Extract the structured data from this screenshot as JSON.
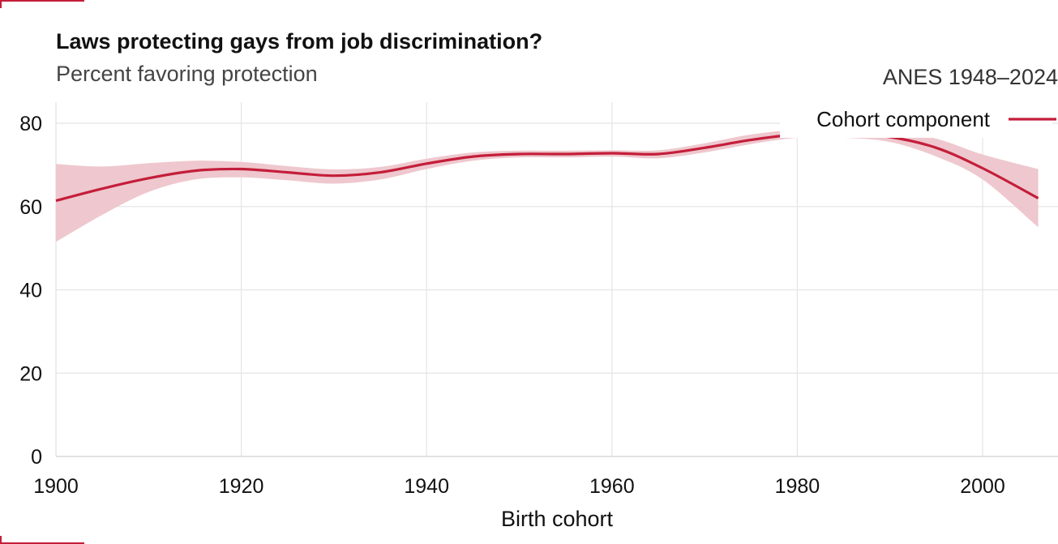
{
  "header": {
    "title": "Laws protecting gays from job discrimination?",
    "subtitle": "Percent favoring protection",
    "source": "ANES 1948–2024"
  },
  "colors": {
    "line": "#c41e3a",
    "band": "#eec8ce",
    "grid": "#e4e4e4",
    "accent": "#c41e3a"
  },
  "chart_data": {
    "type": "line",
    "title": "Laws protecting gays from job discrimination?",
    "subtitle": "Percent favoring protection",
    "xlabel": "Birth cohort",
    "ylabel": "",
    "xlim": [
      1900,
      2007
    ],
    "ylim": [
      0,
      85
    ],
    "xticks": [
      1900,
      1920,
      1940,
      1960,
      1980,
      2000
    ],
    "yticks": [
      0,
      20,
      40,
      60,
      80
    ],
    "grid": true,
    "legend_position": "top-right",
    "series": [
      {
        "name": "Cohort component",
        "x": [
          1900,
          1905,
          1910,
          1915,
          1920,
          1925,
          1930,
          1935,
          1940,
          1945,
          1950,
          1955,
          1960,
          1965,
          1970,
          1975,
          1980,
          1985,
          1990,
          1995,
          2000,
          2006
        ],
        "values": [
          61.4,
          64.3,
          66.8,
          68.6,
          69.0,
          68.2,
          67.4,
          68.2,
          70.3,
          72.0,
          72.6,
          72.6,
          72.8,
          72.6,
          74.1,
          76.0,
          77.3,
          77.5,
          76.7,
          74.1,
          69.2,
          62.0
        ],
        "lower": [
          51.5,
          58.0,
          63.5,
          66.5,
          67.0,
          66.3,
          65.5,
          66.5,
          69.0,
          71.0,
          71.8,
          71.8,
          72.0,
          71.6,
          73.0,
          75.0,
          76.5,
          76.5,
          75.5,
          72.0,
          66.5,
          55.0
        ],
        "upper": [
          70.2,
          69.6,
          70.4,
          71.0,
          70.7,
          69.7,
          68.9,
          69.5,
          71.5,
          73.0,
          73.4,
          73.4,
          73.5,
          73.5,
          75.2,
          77.3,
          78.5,
          78.8,
          78.2,
          76.3,
          72.5,
          69.0
        ]
      }
    ]
  }
}
